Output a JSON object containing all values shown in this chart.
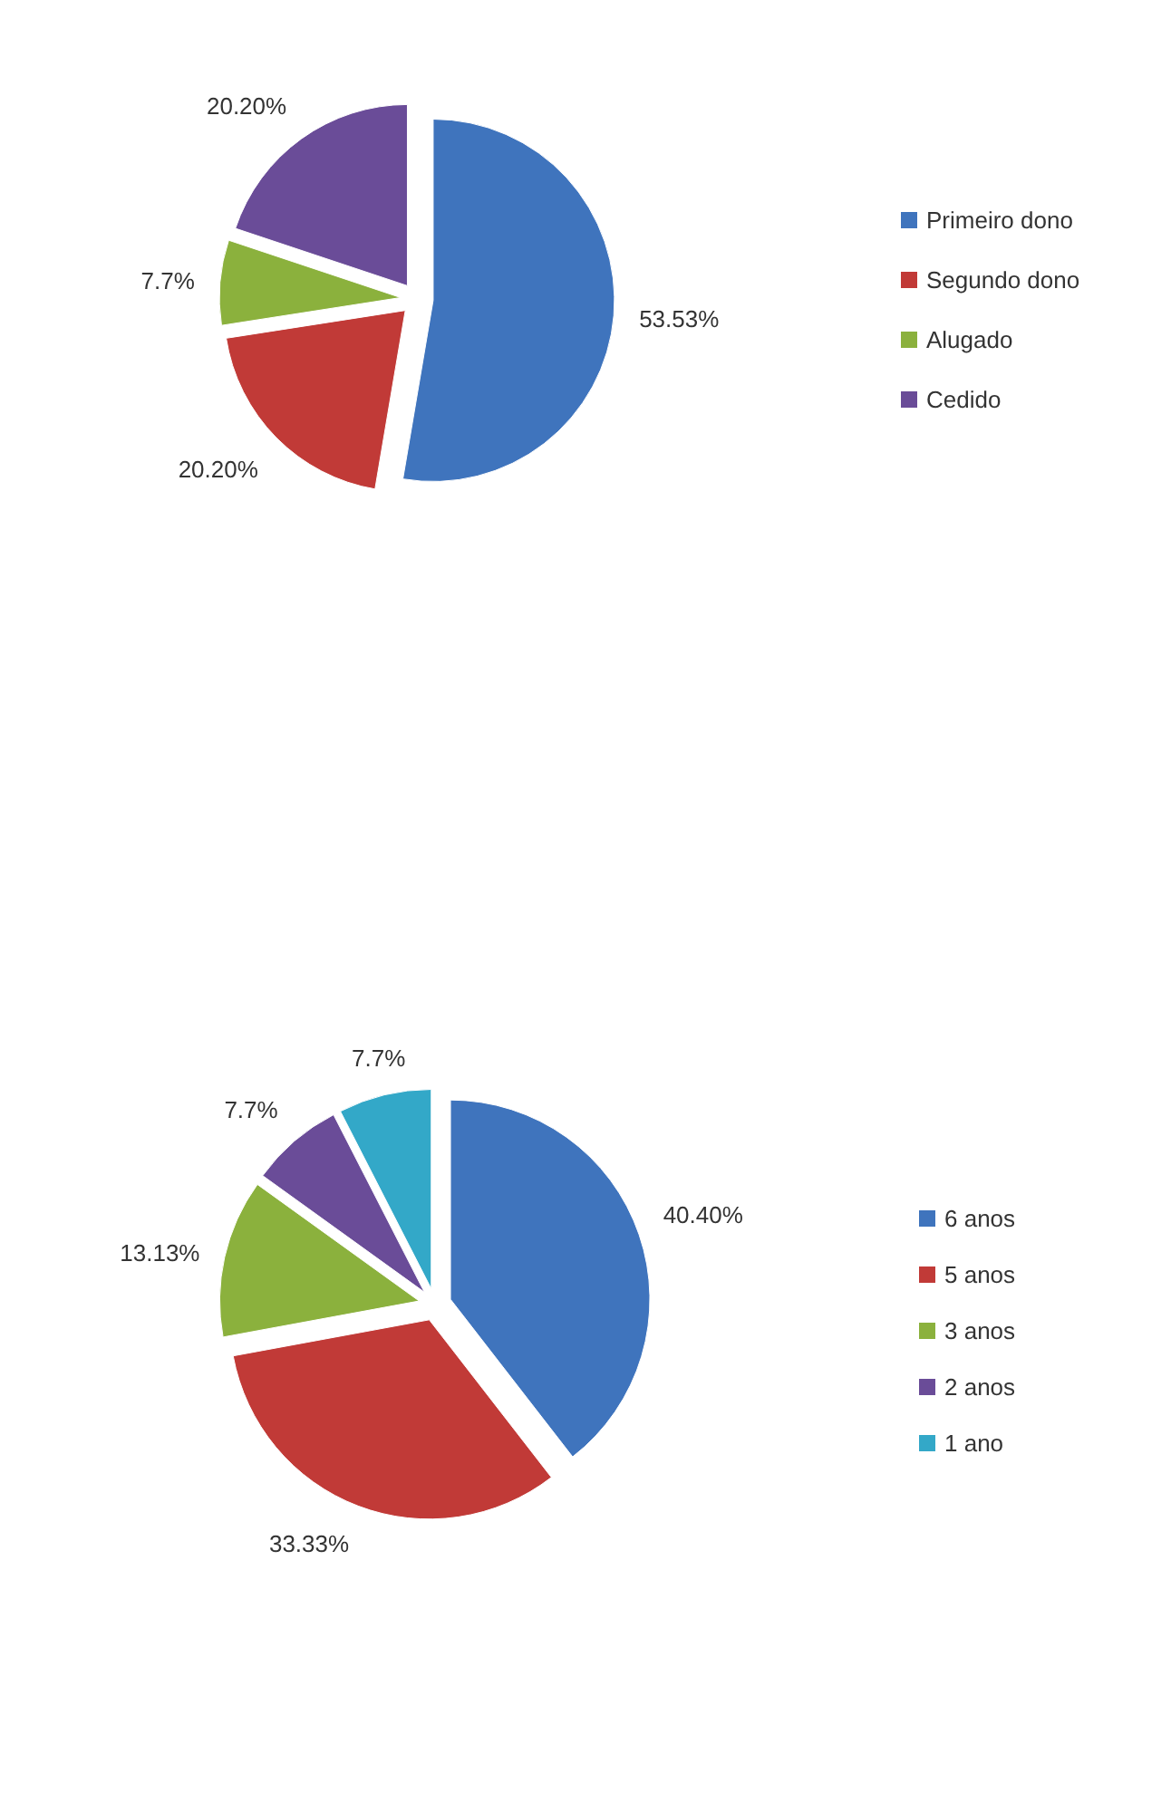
{
  "chart_data": [
    {
      "type": "pie",
      "categories": [
        "Primeiro dono",
        "Segundo dono",
        "Alugado",
        "Cedido"
      ],
      "values": [
        53.53,
        20.2,
        7.7,
        20.2
      ],
      "colors": [
        "#3f74bd",
        "#c13a37",
        "#8bb13d",
        "#6a4c98"
      ],
      "value_labels": [
        "53.53%",
        "20.20%",
        "7.7%",
        "20.20%"
      ],
      "legend": "right"
    },
    {
      "type": "pie",
      "categories": [
        "6 anos",
        "5 anos",
        "3 anos",
        "2 anos",
        "1 ano"
      ],
      "values": [
        40.4,
        33.33,
        13.13,
        7.7,
        7.7
      ],
      "colors": [
        "#3f74bd",
        "#c13a37",
        "#8bb13d",
        "#6a4c98",
        "#33a8c8"
      ],
      "value_labels": [
        "40.40%",
        "33.33%",
        "13.13%",
        "7.7%",
        "7.7%"
      ],
      "legend": "right"
    }
  ]
}
